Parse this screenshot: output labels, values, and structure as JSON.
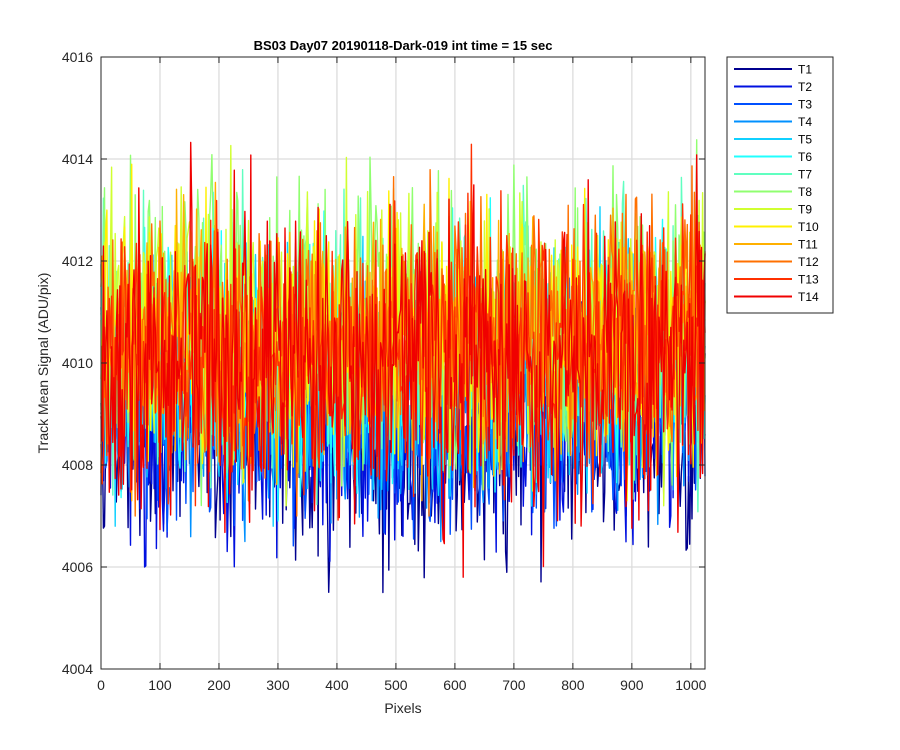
{
  "chart_data": {
    "type": "line",
    "title": "BS03 Day07 20190118-Dark-019 int time = 15 sec",
    "xlabel": "Pixels",
    "ylabel": "Track Mean Signal (ADU/pix)",
    "xlim": [
      0,
      1024
    ],
    "ylim": [
      4004,
      4016
    ],
    "x_ticks": [
      0,
      100,
      200,
      300,
      400,
      500,
      600,
      700,
      800,
      900,
      1000
    ],
    "y_ticks": [
      4004,
      4006,
      4008,
      4010,
      4012,
      4014,
      4016
    ],
    "grid": true,
    "legend_position": "outside-top-right",
    "series": [
      {
        "name": "T1",
        "color": "#00008F",
        "mean": 4008.9,
        "range": [
          4005.5,
          4012.8
        ]
      },
      {
        "name": "T2",
        "color": "#0010E0",
        "mean": 4009.0,
        "range": [
          4006.0,
          4012.9
        ]
      },
      {
        "name": "T3",
        "color": "#0050FF",
        "mean": 4009.3,
        "range": [
          4006.3,
          4013.0
        ]
      },
      {
        "name": "T4",
        "color": "#0090FF",
        "mean": 4009.6,
        "range": [
          4006.5,
          4013.3
        ]
      },
      {
        "name": "T5",
        "color": "#10D0FF",
        "mean": 4010.0,
        "range": [
          4006.8,
          4014.0
        ]
      },
      {
        "name": "T6",
        "color": "#20FFFF",
        "mean": 4010.2,
        "range": [
          4006.9,
          4014.2
        ]
      },
      {
        "name": "T7",
        "color": "#60FFC0",
        "mean": 4010.4,
        "range": [
          4007.0,
          4014.4
        ]
      },
      {
        "name": "T8",
        "color": "#90FF70",
        "mean": 4010.6,
        "range": [
          4007.1,
          4015.5
        ]
      },
      {
        "name": "T9",
        "color": "#D0FF30",
        "mean": 4010.6,
        "range": [
          4007.2,
          4014.8
        ]
      },
      {
        "name": "T10",
        "color": "#FFF000",
        "mean": 4010.5,
        "range": [
          4007.3,
          4014.6
        ]
      },
      {
        "name": "T11",
        "color": "#FFB000",
        "mean": 4010.4,
        "range": [
          4007.3,
          4014.6
        ]
      },
      {
        "name": "T12",
        "color": "#FF7000",
        "mean": 4010.5,
        "range": [
          4007.0,
          4014.6
        ]
      },
      {
        "name": "T13",
        "color": "#FF3000",
        "mean": 4010.2,
        "range": [
          4006.8,
          4014.5
        ]
      },
      {
        "name": "T14",
        "color": "#F00000",
        "mean": 4009.8,
        "range": [
          4005.8,
          4015.3
        ]
      }
    ]
  }
}
